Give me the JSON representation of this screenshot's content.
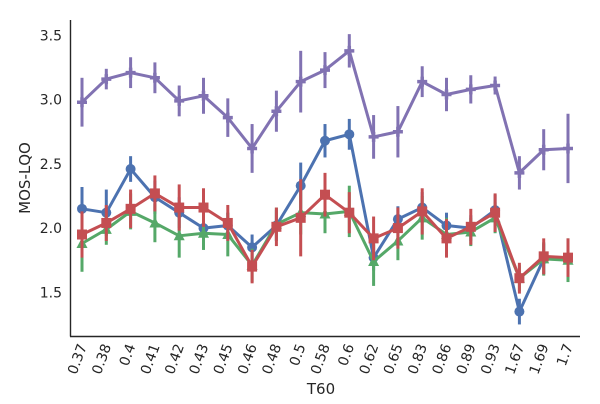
{
  "chart_data": {
    "type": "line",
    "xlabel": "T60",
    "ylabel": "MOS-LQO",
    "categories": [
      "0.37",
      "0.38",
      "0.4",
      "0.41",
      "0.42",
      "0.43",
      "0.45",
      "0.46",
      "0.48",
      "0.5",
      "0.58",
      "0.6",
      "0.62",
      "0.65",
      "0.83",
      "0.86",
      "0.89",
      "0.93",
      "1.67",
      "1.69",
      "1.7"
    ],
    "ylim": [
      1.16,
      3.62
    ],
    "yticks": [
      1.5,
      2.0,
      2.5,
      3.0,
      3.5
    ],
    "ytick_labels": [
      "1.5",
      "2.0",
      "2.5",
      "3.0",
      "3.5"
    ],
    "grid": false,
    "series": [
      {
        "color": "#4c72b0",
        "marker": "circle",
        "values": [
          2.15,
          2.12,
          2.46,
          2.24,
          2.12,
          2.0,
          2.02,
          1.85,
          2.02,
          2.33,
          2.68,
          2.73,
          1.77,
          2.07,
          2.16,
          2.02,
          2.0,
          2.14,
          1.35,
          1.76,
          1.76
        ],
        "err": [
          0.17,
          0.18,
          0.1,
          0.13,
          0.12,
          0.1,
          0.1,
          0.1,
          0.12,
          0.18,
          0.13,
          0.12,
          0.1,
          0.1,
          0.12,
          0.1,
          0.1,
          0.12,
          0.1,
          0.12,
          0.14
        ]
      },
      {
        "color": "#55a868",
        "marker": "triangle",
        "values": [
          1.88,
          1.99,
          2.13,
          2.04,
          1.94,
          1.96,
          1.95,
          1.71,
          2.03,
          2.12,
          2.11,
          2.13,
          1.74,
          1.9,
          2.08,
          1.95,
          1.97,
          2.08,
          1.61,
          1.76,
          1.75
        ],
        "err": [
          0.22,
          0.12,
          0.14,
          0.15,
          0.17,
          0.13,
          0.17,
          0.13,
          0.13,
          0.17,
          0.15,
          0.2,
          0.19,
          0.15,
          0.17,
          0.13,
          0.11,
          0.12,
          0.1,
          0.13,
          0.17
        ]
      },
      {
        "color": "#c44e52",
        "marker": "square",
        "values": [
          1.95,
          2.04,
          2.15,
          2.27,
          2.16,
          2.16,
          2.04,
          1.7,
          2.01,
          2.08,
          2.26,
          2.12,
          1.92,
          2.0,
          2.13,
          1.92,
          2.01,
          2.12,
          1.61,
          1.78,
          1.77
        ],
        "err": [
          0.18,
          0.14,
          0.15,
          0.14,
          0.18,
          0.15,
          0.14,
          0.13,
          0.15,
          0.3,
          0.17,
          0.16,
          0.17,
          0.16,
          0.18,
          0.15,
          0.14,
          0.15,
          0.12,
          0.14,
          0.15
        ]
      },
      {
        "color": "#8172b2",
        "marker": "plus",
        "values": [
          2.98,
          3.16,
          3.21,
          3.17,
          2.99,
          3.03,
          2.86,
          2.62,
          2.91,
          3.14,
          3.23,
          3.38,
          2.71,
          2.75,
          3.14,
          3.04,
          3.08,
          3.11,
          2.43,
          2.61,
          2.62
        ],
        "err": [
          0.19,
          0.08,
          0.12,
          0.12,
          0.12,
          0.14,
          0.15,
          0.19,
          0.16,
          0.24,
          0.14,
          0.13,
          0.17,
          0.2,
          0.12,
          0.13,
          0.11,
          0.07,
          0.13,
          0.16,
          0.27
        ]
      }
    ]
  }
}
